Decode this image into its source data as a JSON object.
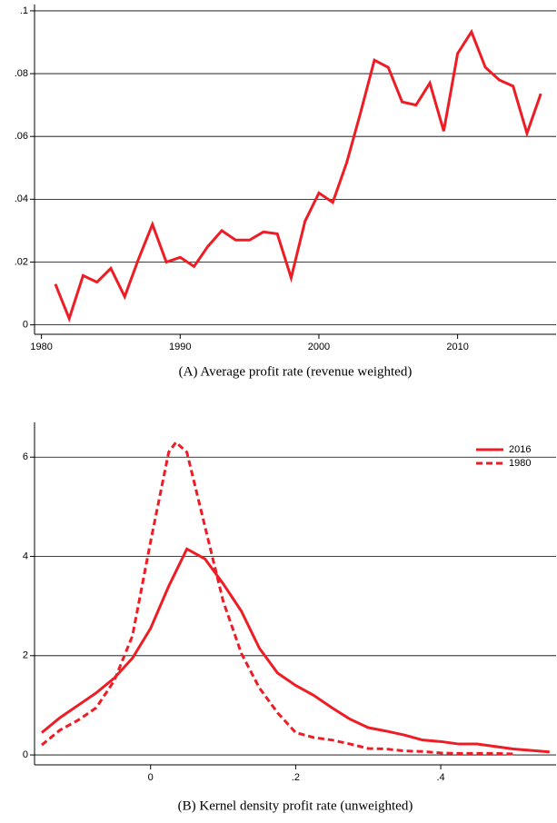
{
  "chart_data": [
    {
      "type": "line",
      "title": "(A) Average profit rate (revenue weighted)",
      "x": [
        1981,
        1982,
        1983,
        1984,
        1985,
        1986,
        1987,
        1988,
        1989,
        1990,
        1991,
        1992,
        1993,
        1994,
        1995,
        1996,
        1997,
        1998,
        1999,
        2000,
        2001,
        2002,
        2003,
        2004,
        2005,
        2006,
        2007,
        2008,
        2009,
        2010,
        2011,
        2012,
        2013,
        2014,
        2015,
        2016
      ],
      "series": [
        {
          "name": null,
          "color": "#ee1c25",
          "dash": false,
          "values": [
            0.013,
            0.002,
            0.0157,
            0.0136,
            0.018,
            0.009,
            0.021,
            0.032,
            0.02,
            0.0215,
            0.0186,
            0.025,
            0.03,
            0.027,
            0.027,
            0.0296,
            0.029,
            0.015,
            0.033,
            0.042,
            0.039,
            0.0516,
            0.0675,
            0.0843,
            0.082,
            0.071,
            0.07,
            0.077,
            0.0617,
            0.0864,
            0.0933,
            0.082,
            0.078,
            0.076,
            0.061,
            0.0736
          ]
        }
      ],
      "xlim": [
        1979.5,
        2017.1
      ],
      "xticks": [
        1980,
        1990,
        2000,
        2010
      ],
      "ylim": [
        -0.003,
        0.102
      ],
      "yticks": [
        0,
        {
          "value": 0.02,
          "label": ".02"
        },
        {
          "value": 0.04,
          "label": ".04"
        },
        {
          "value": 0.06,
          "label": ".06"
        },
        {
          "value": 0.08,
          "label": ".08"
        },
        {
          "value": 0.1,
          "label": ".1"
        }
      ],
      "grid": true
    },
    {
      "type": "line",
      "title": "(B) Kernel density profit rate (unweighted)",
      "series": [
        {
          "name": "2016",
          "color": "#ee1c25",
          "dash": false,
          "x": [
            -0.15,
            -0.125,
            -0.1,
            -0.075,
            -0.05,
            -0.025,
            0,
            0.025,
            0.05,
            0.075,
            0.1,
            0.125,
            0.15,
            0.175,
            0.2,
            0.225,
            0.25,
            0.275,
            0.3,
            0.325,
            0.35,
            0.375,
            0.4,
            0.425,
            0.45,
            0.475,
            0.5,
            0.525,
            0.55
          ],
          "values": [
            0.45,
            0.75,
            1.0,
            1.25,
            1.55,
            1.95,
            2.55,
            3.4,
            4.15,
            3.95,
            3.45,
            2.9,
            2.15,
            1.65,
            1.4,
            1.2,
            0.95,
            0.72,
            0.55,
            0.48,
            0.4,
            0.3,
            0.27,
            0.22,
            0.22,
            0.17,
            0.12,
            0.09,
            0.06
          ]
        },
        {
          "name": "1980",
          "color": "#ee1c25",
          "dash": true,
          "x": [
            -0.15,
            -0.125,
            -0.1,
            -0.075,
            -0.05,
            -0.025,
            0,
            0.025,
            0.035,
            0.05,
            0.075,
            0.1,
            0.125,
            0.15,
            0.175,
            0.2,
            0.225,
            0.25,
            0.275,
            0.3,
            0.325,
            0.35,
            0.375,
            0.4,
            0.425,
            0.45,
            0.475,
            0.5
          ],
          "values": [
            0.2,
            0.5,
            0.7,
            0.95,
            1.5,
            2.4,
            4.3,
            6.1,
            6.3,
            6.1,
            4.6,
            3.1,
            2.05,
            1.35,
            0.85,
            0.45,
            0.35,
            0.3,
            0.22,
            0.13,
            0.12,
            0.08,
            0.07,
            0.04,
            0.03,
            0.03,
            0.03,
            0.02
          ]
        }
      ],
      "xlim": [
        -0.16,
        0.559
      ],
      "xticks": [
        0,
        {
          "value": 0.2,
          "label": ".2"
        },
        {
          "value": 0.4,
          "label": ".4"
        }
      ],
      "ylim": [
        -0.2,
        6.7
      ],
      "yticks": [
        0,
        2,
        4,
        6
      ],
      "grid": true,
      "legend": "top-right"
    }
  ]
}
